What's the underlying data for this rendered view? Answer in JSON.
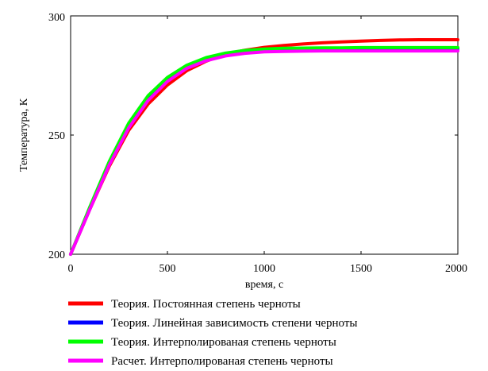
{
  "chart_data": {
    "type": "line",
    "xlabel": "время, с",
    "ylabel": "Температура, К",
    "xlim": [
      0,
      2000
    ],
    "ylim": [
      200,
      300
    ],
    "x_ticks": [
      "0",
      "500",
      "1000",
      "1500",
      "2000"
    ],
    "y_ticks": [
      "200",
      "250",
      "300"
    ],
    "grid": false,
    "legend_position": "bottom",
    "x": [
      0,
      100,
      200,
      300,
      400,
      500,
      600,
      700,
      800,
      900,
      1000,
      1100,
      1200,
      1300,
      1400,
      1500,
      1600,
      1700,
      1800,
      1900,
      2000
    ],
    "series": [
      {
        "name": "Теория. Постоянная степень черноты",
        "color": "#ff0000",
        "values": [
          200,
          219,
          237,
          252,
          263,
          271,
          277,
          281,
          284,
          285.6,
          286.8,
          287.6,
          288.2,
          288.7,
          289.1,
          289.4,
          289.7,
          289.9,
          290,
          290,
          290
        ]
      },
      {
        "name": "Теория. Линейная зависимость степени черноты",
        "color": "#0000ff",
        "values": [
          200,
          219,
          238,
          253.5,
          265,
          273,
          278.5,
          281.8,
          283.8,
          285,
          285.6,
          285.9,
          286,
          286.1,
          286.1,
          286.2,
          286.2,
          286.2,
          286.2,
          286.2,
          286.2
        ]
      },
      {
        "name": "Теория. Интерполированая степень черноты",
        "color": "#00ff00",
        "values": [
          200,
          220,
          239,
          255,
          266.5,
          274.2,
          279.3,
          282.5,
          284.4,
          285.5,
          286.1,
          286.4,
          286.5,
          286.6,
          286.6,
          286.7,
          286.7,
          286.7,
          286.7,
          286.7,
          286.7
        ]
      },
      {
        "name": "Расчет. Интерполированая степень черноты",
        "color": "#ff00ff",
        "values": [
          200,
          219,
          237.5,
          253,
          264.5,
          272.5,
          278,
          281.2,
          283.2,
          284.3,
          284.9,
          285.1,
          285.2,
          285.3,
          285.3,
          285.3,
          285.3,
          285.3,
          285.3,
          285.3,
          285.3
        ]
      }
    ]
  }
}
